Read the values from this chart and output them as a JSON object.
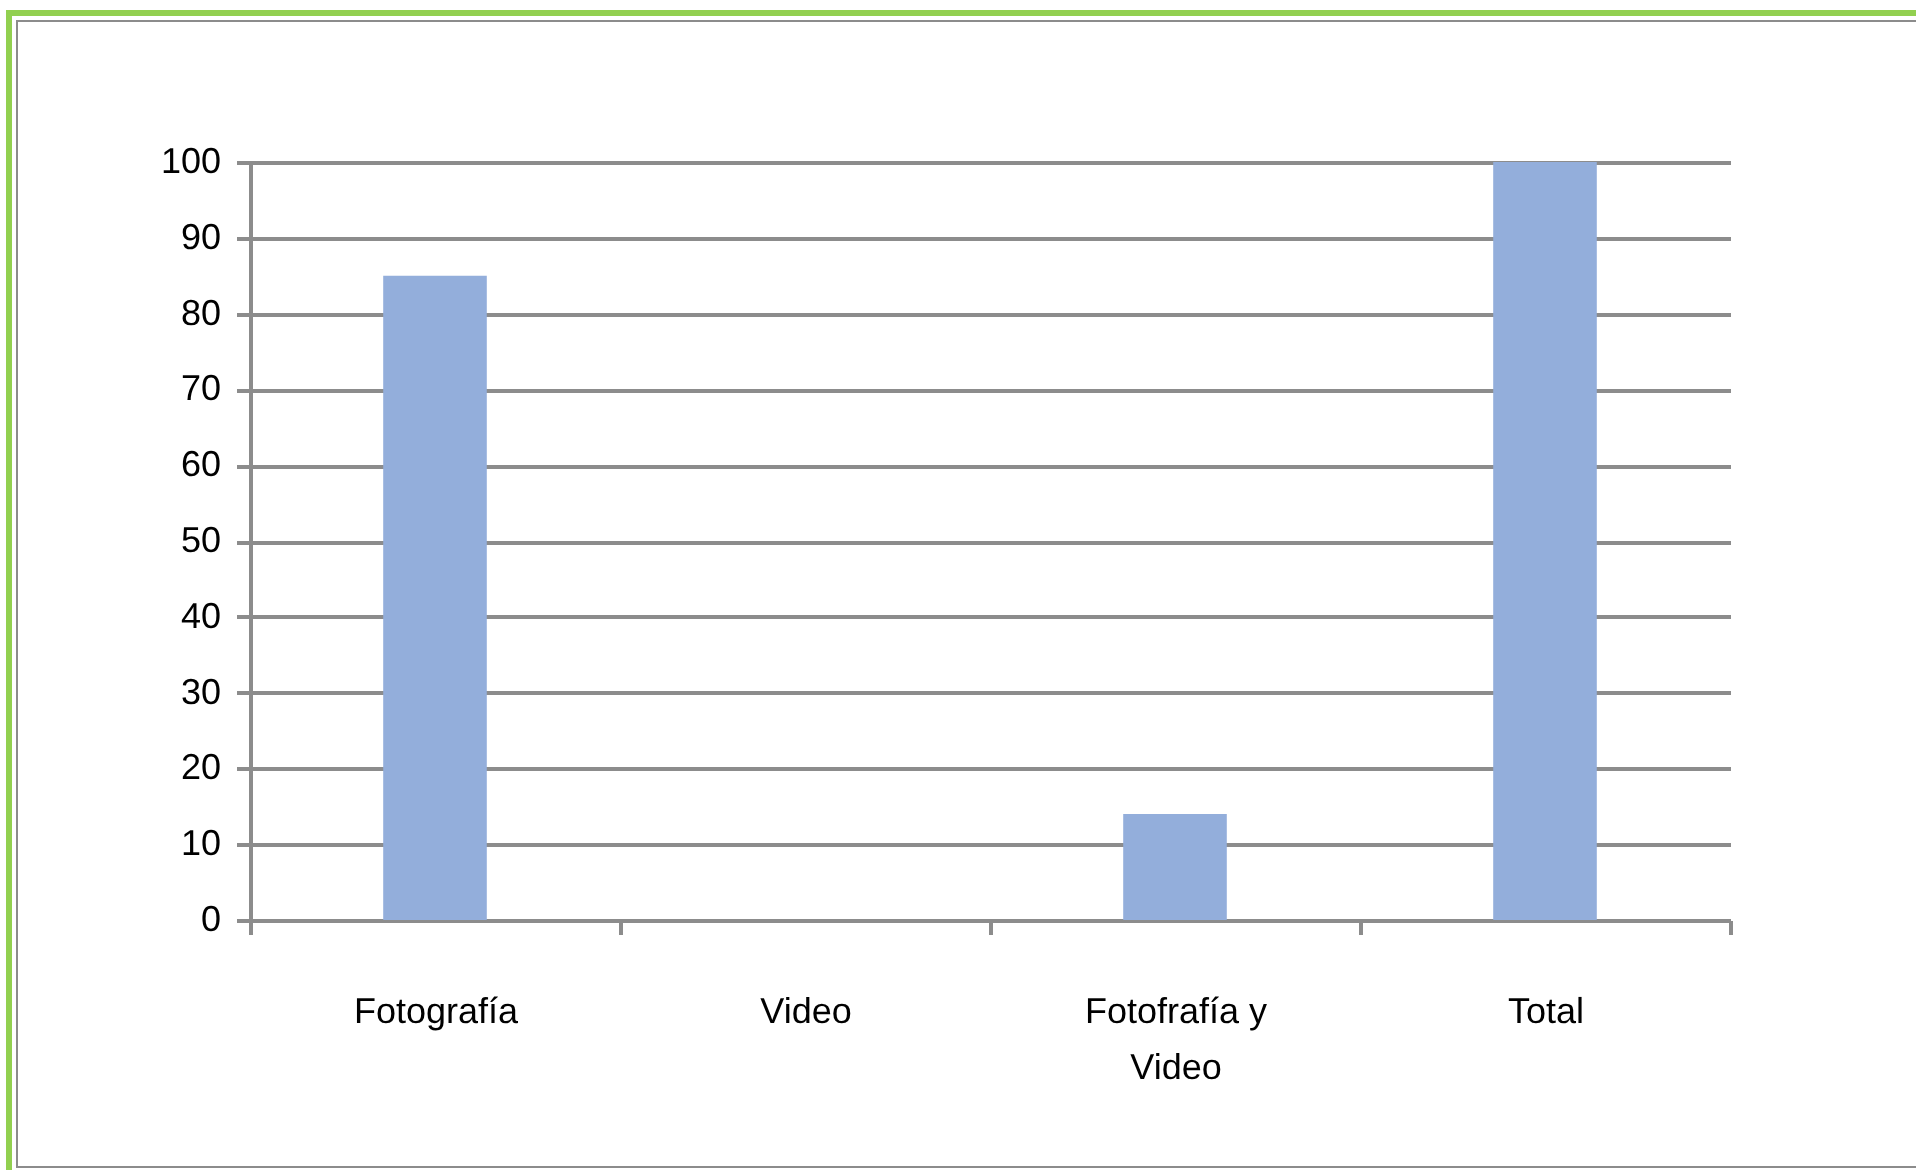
{
  "chart_data": {
    "type": "bar",
    "categories": [
      "Fotografía",
      "Video",
      "Fotofrafía y Video",
      "Total"
    ],
    "values": [
      85,
      0,
      14,
      100
    ],
    "color": "#93aedb",
    "ylim": [
      0,
      100
    ],
    "yticks": [
      0,
      10,
      20,
      30,
      40,
      50,
      60,
      70,
      80,
      90,
      100
    ],
    "grid": "y"
  }
}
